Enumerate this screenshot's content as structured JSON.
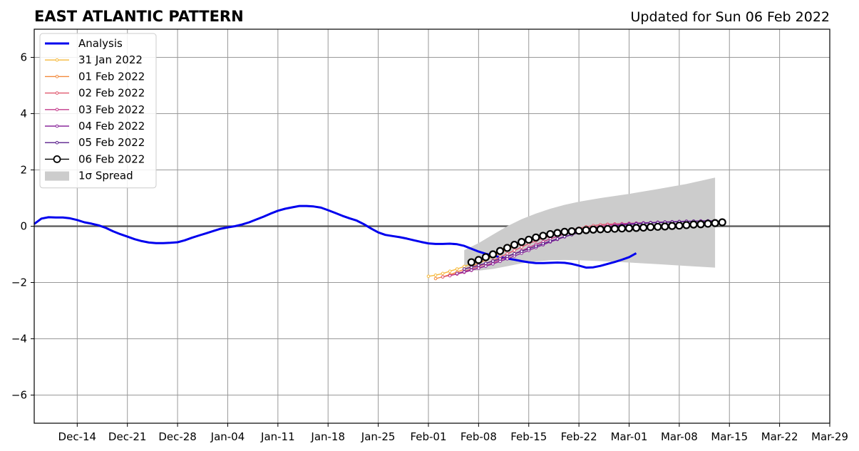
{
  "chart_data": {
    "type": "line",
    "title": "EAST ATLANTIC PATTERN",
    "subtitle": "Updated for Sun 06 Feb 2022",
    "xlabel": "",
    "ylabel": "",
    "x_axis": {
      "type": "date",
      "range": [
        "2021-12-08",
        "2022-03-29"
      ],
      "tick_labels": [
        "Dec-14",
        "Dec-21",
        "Dec-28",
        "Jan-04",
        "Jan-11",
        "Jan-18",
        "Jan-25",
        "Feb-01",
        "Feb-08",
        "Feb-15",
        "Feb-22",
        "Mar-01",
        "Mar-08",
        "Mar-15",
        "Mar-22",
        "Mar-29"
      ],
      "tick_dates": [
        "2021-12-14",
        "2021-12-21",
        "2021-12-28",
        "2022-01-04",
        "2022-01-11",
        "2022-01-18",
        "2022-01-25",
        "2022-02-01",
        "2022-02-08",
        "2022-02-15",
        "2022-02-22",
        "2022-03-01",
        "2022-03-08",
        "2022-03-15",
        "2022-03-22",
        "2022-03-29"
      ]
    },
    "y_axis": {
      "range": [
        -7,
        7
      ],
      "ticks": [
        -6,
        -4,
        -2,
        0,
        2,
        4,
        6
      ],
      "tick_labels": [
        "−6",
        "−4",
        "−2",
        "0",
        "2",
        "4",
        "6"
      ]
    },
    "grid": true,
    "legend_position": "top-left",
    "colors": {
      "analysis": "#0000ee",
      "spread": "#cccccc",
      "grid": "#999999",
      "zero_line": "#555555"
    },
    "series": [
      {
        "name": "Analysis",
        "color": "#0000ee",
        "x_start": "2021-12-08",
        "step_days": 1,
        "values": [
          0.08,
          0.27,
          0.32,
          0.31,
          0.31,
          0.28,
          0.22,
          0.14,
          0.09,
          0.03,
          -0.06,
          -0.18,
          -0.28,
          -0.37,
          -0.46,
          -0.53,
          -0.58,
          -0.6,
          -0.6,
          -0.59,
          -0.57,
          -0.5,
          -0.41,
          -0.33,
          -0.25,
          -0.17,
          -0.09,
          -0.04,
          0.0,
          0.06,
          0.14,
          0.24,
          0.34,
          0.45,
          0.55,
          0.62,
          0.67,
          0.72,
          0.72,
          0.7,
          0.66,
          0.57,
          0.47,
          0.37,
          0.28,
          0.2,
          0.07,
          -0.08,
          -0.22,
          -0.31,
          -0.35,
          -0.39,
          -0.44,
          -0.5,
          -0.56,
          -0.61,
          -0.63,
          -0.63,
          -0.62,
          -0.64,
          -0.7,
          -0.8,
          -0.9,
          -0.98,
          -1.04,
          -1.1,
          -1.15,
          -1.19,
          -1.24,
          -1.28,
          -1.31,
          -1.31,
          -1.3,
          -1.29,
          -1.3,
          -1.34,
          -1.4,
          -1.47,
          -1.46,
          -1.41,
          -1.34,
          -1.27,
          -1.19,
          -1.1,
          -0.96
        ]
      },
      {
        "name": "31 Jan 2022",
        "color": "#f6b93b",
        "x_start": "2022-02-01",
        "step_days": 1,
        "values": [
          -1.78,
          -1.74,
          -1.68,
          -1.6,
          -1.52,
          -1.43,
          -1.33,
          -1.22,
          -1.1,
          -0.97,
          -0.84,
          -0.72,
          -0.6
        ]
      },
      {
        "name": "01 Feb 2022",
        "color": "#f28a3c",
        "x_start": "2022-02-02",
        "step_days": 1,
        "values": [
          -1.86,
          -1.8,
          -1.72,
          -1.63,
          -1.53,
          -1.43,
          -1.32,
          -1.2,
          -1.08,
          -0.96,
          -0.84,
          -0.72,
          -0.61,
          -0.51,
          -0.43,
          -0.36,
          -0.29,
          -0.23
        ]
      },
      {
        "name": "02 Feb 2022",
        "color": "#e0586e",
        "x_start": "2022-02-03",
        "step_days": 1,
        "values": [
          -1.8,
          -1.75,
          -1.68,
          -1.6,
          -1.52,
          -1.43,
          -1.33,
          -1.22,
          -1.1,
          -0.98,
          -0.86,
          -0.74,
          -0.62,
          -0.52,
          -0.43,
          -0.35,
          -0.27,
          -0.2,
          -0.13,
          -0.07,
          -0.02,
          0.02,
          0.05,
          0.07,
          0.08,
          0.09,
          0.1,
          0.11,
          0.12,
          0.12
        ]
      },
      {
        "name": "03 Feb 2022",
        "color": "#c23a8a",
        "x_start": "2022-02-04",
        "step_days": 1,
        "values": [
          -1.76,
          -1.7,
          -1.64,
          -1.57,
          -1.49,
          -1.4,
          -1.3,
          -1.2,
          -1.09,
          -0.98,
          -0.87,
          -0.76,
          -0.65,
          -0.55,
          -0.45,
          -0.36,
          -0.28,
          -0.21,
          -0.15,
          -0.09,
          -0.04,
          0.0,
          0.03,
          0.06,
          0.08,
          0.1,
          0.11,
          0.12,
          0.13,
          0.14,
          0.15,
          0.15
        ]
      },
      {
        "name": "04 Feb 2022",
        "color": "#8c2a9c",
        "x_start": "2022-02-05",
        "step_days": 1,
        "values": [
          -1.68,
          -1.62,
          -1.56,
          -1.49,
          -1.42,
          -1.34,
          -1.25,
          -1.16,
          -1.06,
          -0.96,
          -0.86,
          -0.76,
          -0.66,
          -0.56,
          -0.47,
          -0.38,
          -0.3,
          -0.23,
          -0.17,
          -0.11,
          -0.06,
          -0.02,
          0.02,
          0.05,
          0.08,
          0.1,
          0.12,
          0.13,
          0.14,
          0.15,
          0.16,
          0.17,
          0.18,
          0.18,
          0.19,
          0.19
        ]
      },
      {
        "name": "05 Feb 2022",
        "color": "#5a1f8c",
        "x_start": "2022-02-06",
        "step_days": 1,
        "values": [
          -1.52,
          -1.46,
          -1.39,
          -1.32,
          -1.24,
          -1.16,
          -1.07,
          -0.98,
          -0.89,
          -0.8,
          -0.71,
          -0.62,
          -0.53,
          -0.45,
          -0.37,
          -0.3,
          -0.23,
          -0.17,
          -0.12,
          -0.07,
          -0.03,
          0.0,
          0.03,
          0.06,
          0.08,
          0.1,
          0.12,
          0.13,
          0.14,
          0.15,
          0.16,
          0.17,
          0.18,
          0.18,
          0.19,
          0.19
        ]
      },
      {
        "name": "06 Feb 2022",
        "color": "#000000",
        "marker": "open-circle",
        "x_start": "2022-02-07",
        "step_days": 1,
        "values": [
          -1.28,
          -1.2,
          -1.1,
          -1.0,
          -0.88,
          -0.77,
          -0.66,
          -0.56,
          -0.48,
          -0.4,
          -0.34,
          -0.28,
          -0.24,
          -0.2,
          -0.18,
          -0.16,
          -0.14,
          -0.12,
          -0.11,
          -0.1,
          -0.09,
          -0.08,
          -0.07,
          -0.06,
          -0.05,
          -0.03,
          -0.02,
          -0.01,
          0.01,
          0.02,
          0.04,
          0.06,
          0.07,
          0.09,
          0.11,
          0.14
        ]
      }
    ],
    "spread": {
      "name": "1σ Spread",
      "color": "#cccccc",
      "x": [
        "2022-02-06",
        "2022-02-08",
        "2022-02-10",
        "2022-02-12",
        "2022-02-14",
        "2022-02-16",
        "2022-02-18",
        "2022-02-20",
        "2022-02-22",
        "2022-02-25",
        "2022-03-01",
        "2022-03-05",
        "2022-03-09",
        "2022-03-13"
      ],
      "upper": [
        -0.85,
        -0.6,
        -0.3,
        0.0,
        0.25,
        0.45,
        0.62,
        0.76,
        0.87,
        1.0,
        1.15,
        1.32,
        1.5,
        1.73
      ],
      "lower": [
        -1.55,
        -1.58,
        -1.52,
        -1.42,
        -1.32,
        -1.25,
        -1.21,
        -1.2,
        -1.21,
        -1.24,
        -1.29,
        -1.35,
        -1.41,
        -1.47
      ]
    }
  }
}
